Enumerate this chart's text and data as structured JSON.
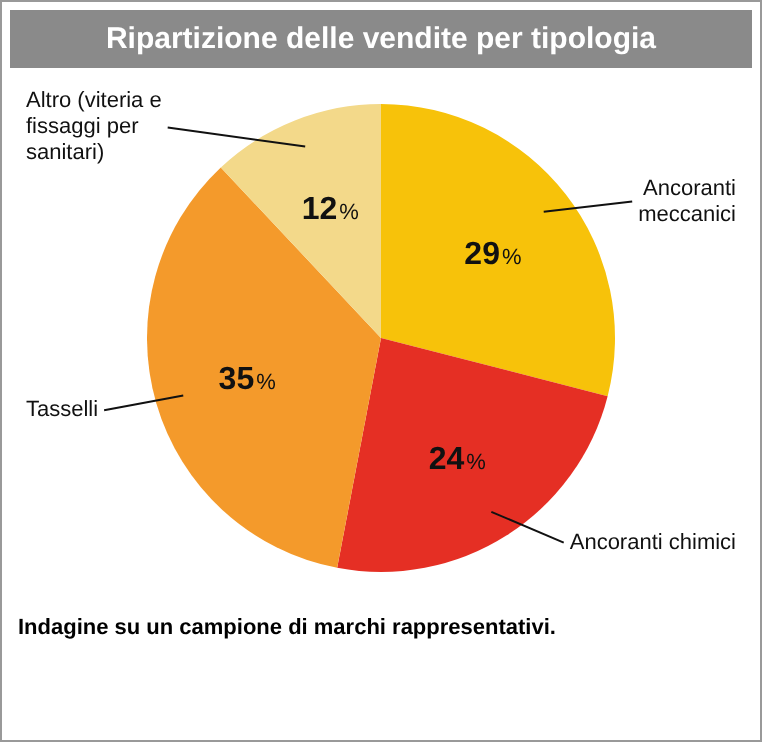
{
  "chart_data": {
    "type": "pie",
    "title": "Ripartizione delle vendite per tipologia",
    "categories": [
      "Ancoranti meccanici",
      "Ancoranti chimici",
      "Tasselli",
      "Altro (viteria e fissaggi per sanitari)"
    ],
    "values": [
      29,
      24,
      35,
      12
    ],
    "colors": [
      "#f7c20a",
      "#e52f24",
      "#f49a2b",
      "#f3d98a"
    ],
    "value_labels": [
      "29%",
      "24%",
      "35%",
      "12%"
    ],
    "legend": false,
    "annotations": [
      "Indagine su un campione di marchi rappresentativi."
    ]
  }
}
